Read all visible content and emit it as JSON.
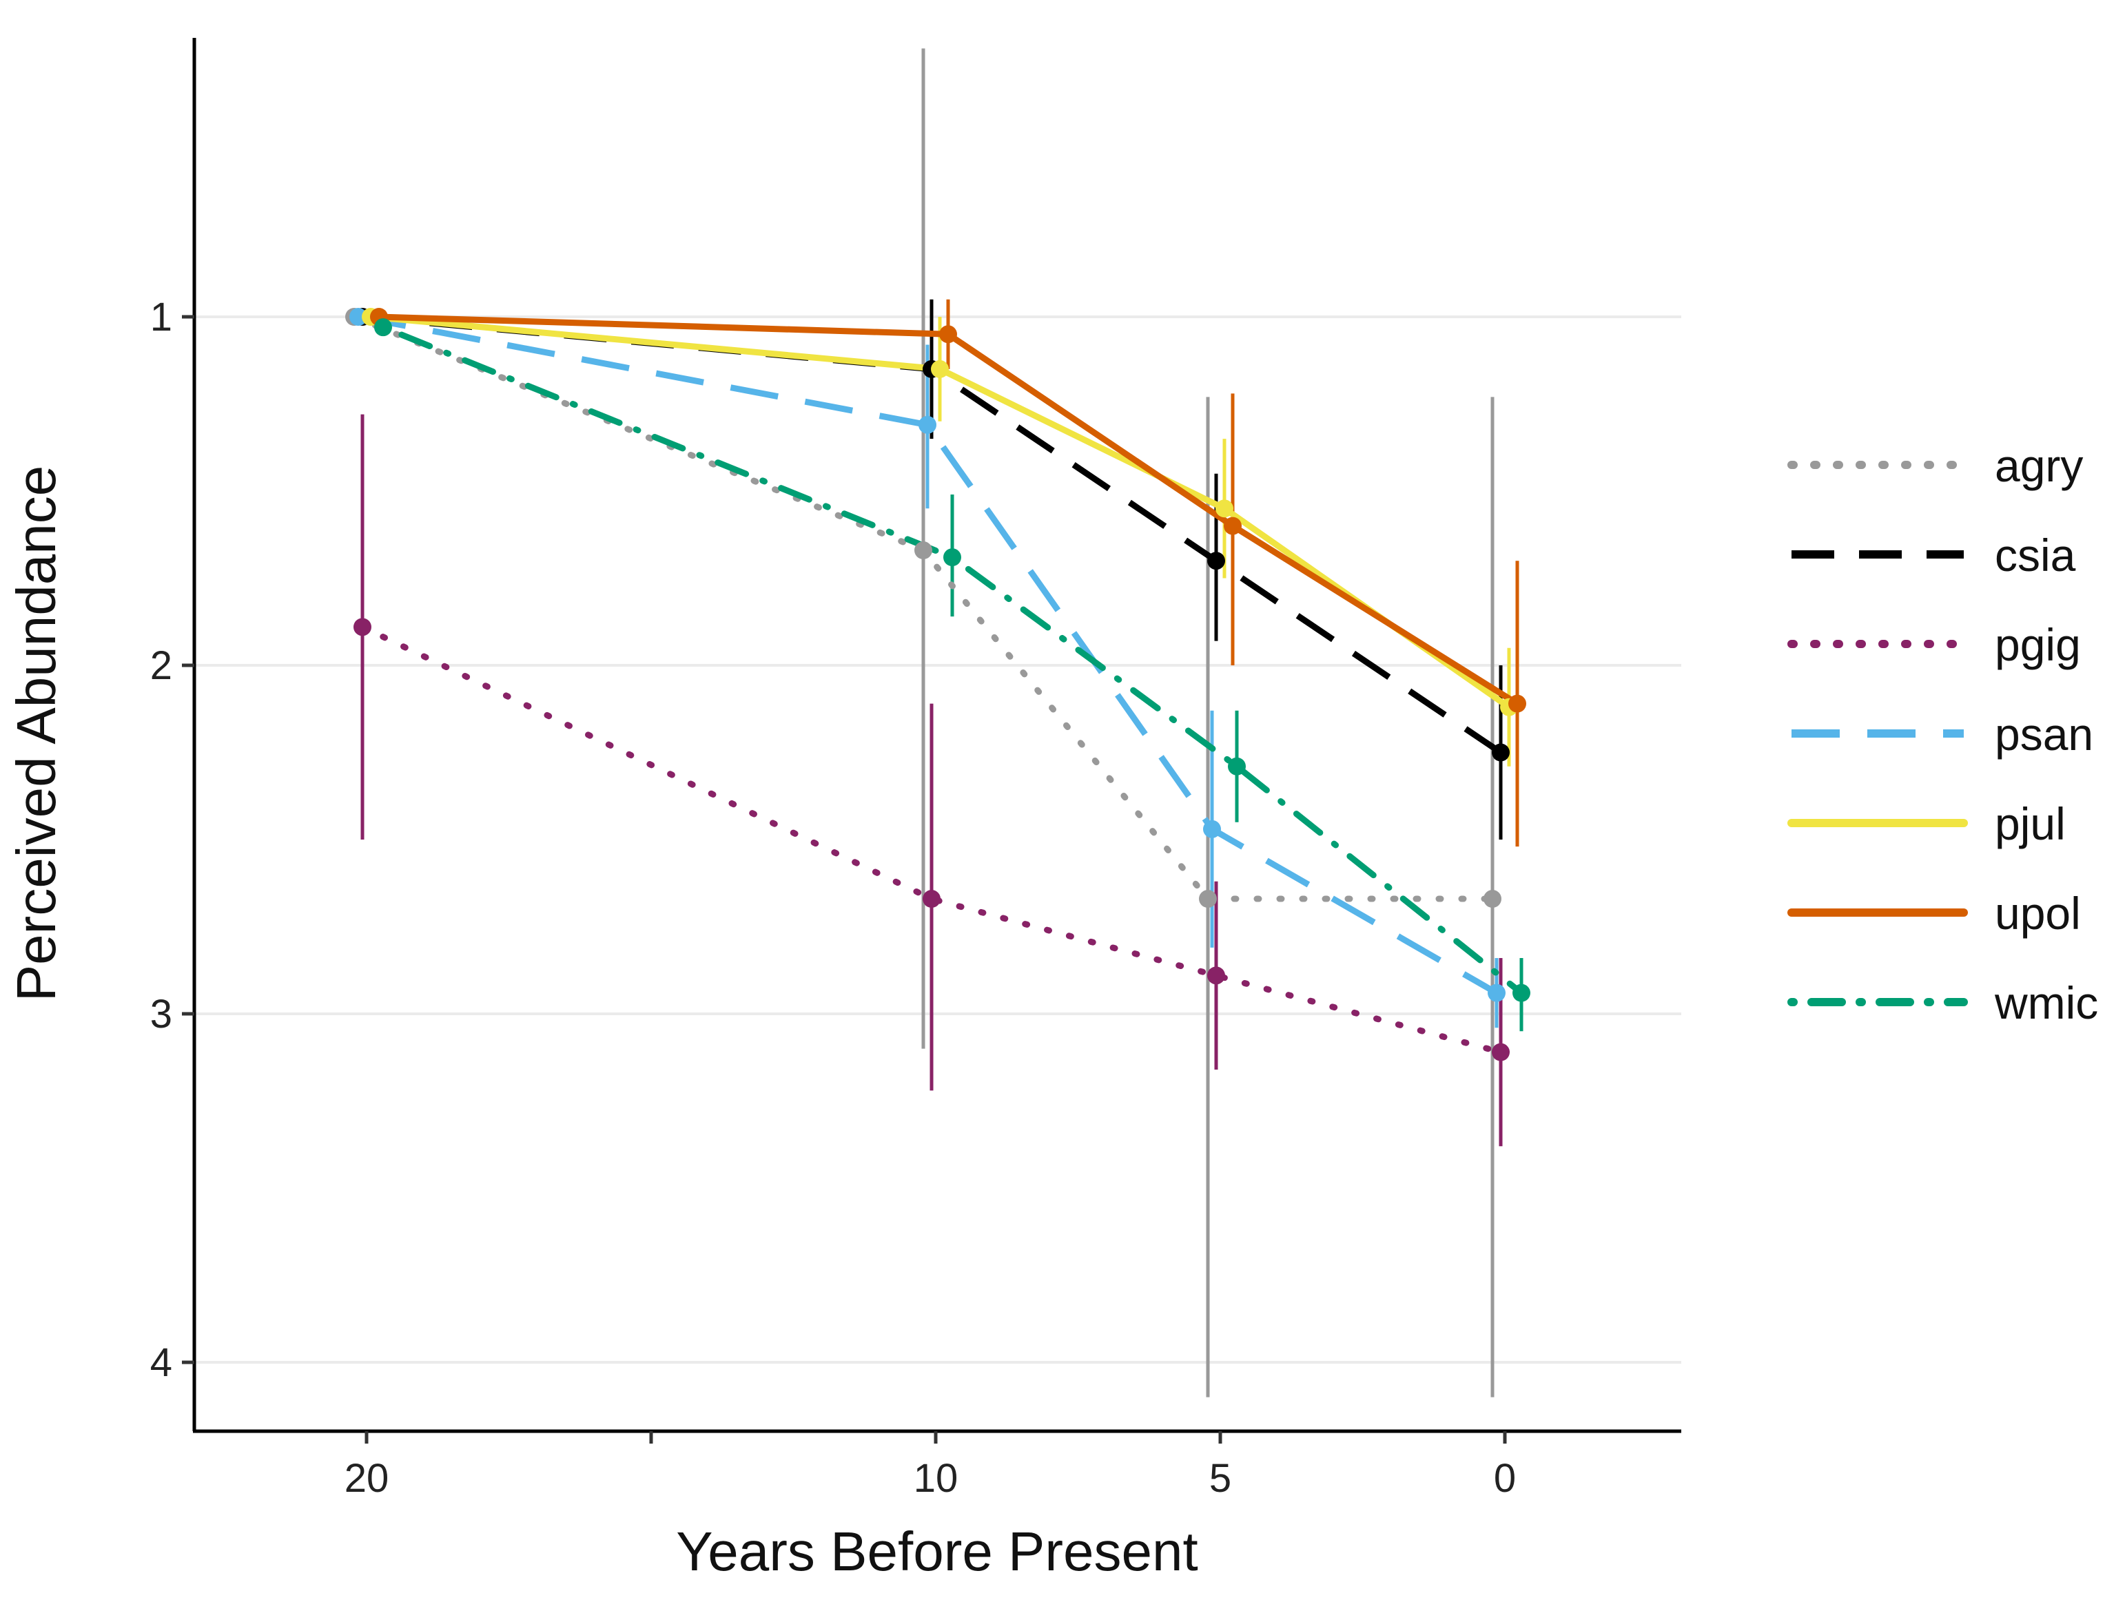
{
  "chart_data": {
    "type": "line",
    "title": "",
    "xlabel": "Years Before Present",
    "ylabel": "Perceived Abundance",
    "x_categories": [
      "20",
      "10",
      "5",
      "0"
    ],
    "x_axis_reversed": true,
    "y_axis_reversed": true,
    "ylim": [
      0.23,
      4.2
    ],
    "y_ticks": [
      "1",
      "2",
      "3",
      "4"
    ],
    "grid": "horizontal major",
    "legend_position": "right",
    "series": [
      {
        "name": "agry",
        "color": "#999999",
        "linestyle": "dotted",
        "x": [
          20,
          10,
          5,
          0
        ],
        "y": [
          1.0,
          1.67,
          2.67,
          2.67
        ],
        "err_low": [
          null,
          0.23,
          1.23,
          1.23
        ],
        "err_high": [
          null,
          3.1,
          4.1,
          4.1
        ]
      },
      {
        "name": "csia",
        "color": "#000000",
        "linestyle": "dashed",
        "x": [
          20,
          10,
          5,
          0
        ],
        "y": [
          1.0,
          1.15,
          1.7,
          2.25
        ],
        "err_low": [
          null,
          0.95,
          1.45,
          2.0
        ],
        "err_high": [
          null,
          1.35,
          1.93,
          2.5
        ]
      },
      {
        "name": "pgig",
        "color": "#882266",
        "linestyle": "dotted",
        "x": [
          20,
          10,
          5,
          0
        ],
        "y": [
          1.89,
          2.67,
          2.89,
          3.11
        ],
        "err_low": [
          1.28,
          2.11,
          2.62,
          2.84
        ],
        "err_high": [
          2.5,
          3.22,
          3.16,
          3.38
        ]
      },
      {
        "name": "psan",
        "color": "#56B4E9",
        "linestyle": "longdash",
        "x": [
          20,
          10,
          5,
          0
        ],
        "y": [
          1.0,
          1.31,
          2.47,
          2.94
        ],
        "err_low": [
          null,
          1.08,
          2.13,
          2.84
        ],
        "err_high": [
          null,
          1.55,
          2.81,
          3.04
        ]
      },
      {
        "name": "pjul",
        "color": "#F0E442",
        "linestyle": "solid",
        "x": [
          20,
          10,
          5,
          0
        ],
        "y": [
          1.0,
          1.15,
          1.55,
          2.12
        ],
        "err_low": [
          null,
          1.0,
          1.35,
          1.95
        ],
        "err_high": [
          null,
          1.3,
          1.75,
          2.29
        ]
      },
      {
        "name": "upol",
        "color": "#D55E00",
        "linestyle": "solid",
        "x": [
          20,
          10,
          5,
          0
        ],
        "y": [
          1.0,
          1.05,
          1.6,
          2.11
        ],
        "err_low": [
          null,
          0.95,
          1.22,
          1.7
        ],
        "err_high": [
          null,
          1.15,
          2.0,
          2.52
        ]
      },
      {
        "name": "wmic",
        "color": "#009E73",
        "linestyle": "dotdash",
        "x": [
          20,
          10,
          5,
          0
        ],
        "y": [
          1.03,
          1.69,
          2.29,
          2.94
        ],
        "err_low": [
          null,
          1.51,
          2.13,
          2.84
        ],
        "err_high": [
          null,
          1.86,
          2.45,
          3.05
        ]
      }
    ]
  }
}
